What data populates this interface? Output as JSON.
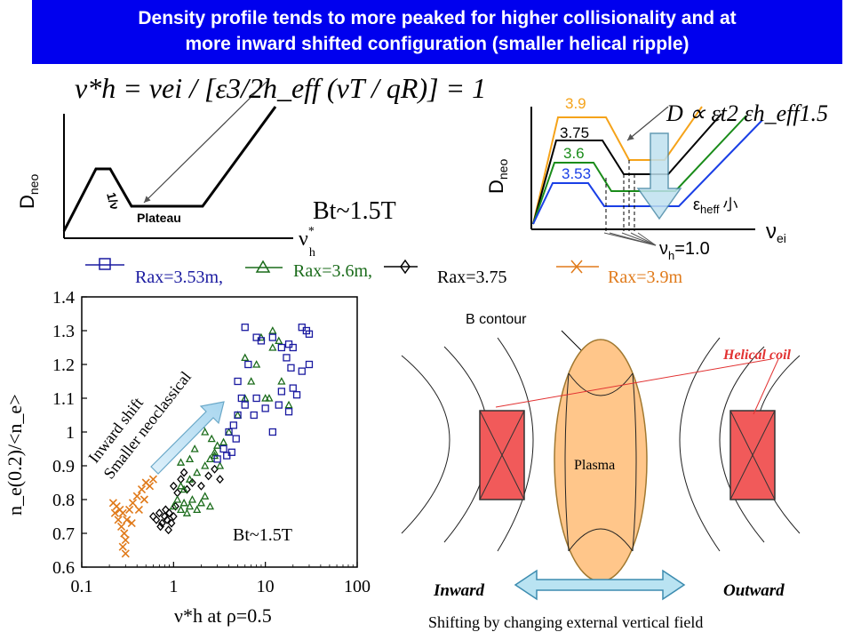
{
  "title": {
    "line1": "Density profile tends to more peaked  for higher collisionality and at",
    "line2": "more inward shifted configuration (smaller helical ripple)"
  },
  "left_schematic": {
    "ylabel": "D",
    "ylabel_sub": "neo",
    "xlabel": "ν",
    "xlabel_sup": "*",
    "xlabel_sub": "h",
    "slope_label": "1/ν",
    "plateau_label": "Plateau",
    "bt_label": "Bt~1.5T",
    "formula": "ν*h = νei / [ε3/2h_eff (νT / qR)] = 1"
  },
  "right_schematic": {
    "ylabel": "D",
    "ylabel_sub": "neo",
    "xlabel": "ν",
    "xlabel_sub": "ei",
    "formula": "D ∝ εt2 εh_eff1.5",
    "eps_label": "ε",
    "eps_sub": "heff",
    "eps_suffix": "小",
    "nu_star_label": "ν",
    "nu_star_sub": "h",
    "nu_star_value": "=1.0",
    "curves": [
      {
        "label": "3.9",
        "color": "#f5a31a"
      },
      {
        "label": "3.75",
        "color": "#000000"
      },
      {
        "label": "3.6",
        "color": "#1a8c1a"
      },
      {
        "label": "3.53",
        "color": "#1a3fe6"
      }
    ]
  },
  "legend": [
    {
      "label": "Rax=3.53m,",
      "color": "#1a1aa0",
      "marker": "square"
    },
    {
      "label": "Rax=3.6m,",
      "color": "#1a6b1a",
      "marker": "triangle"
    },
    {
      "label": "Rax=3.75",
      "color": "#000000",
      "marker": "diamond"
    },
    {
      "label": "Rax=3.9m",
      "color": "#e07a1a",
      "marker": "cross"
    }
  ],
  "scatter": {
    "ylabel": "n_e(0.2)/<n_e>",
    "xlabel": "ν*h at ρ=0.5",
    "yticks": [
      "0.6",
      "0.7",
      "0.8",
      "0.9",
      "1",
      "1.1",
      "1.2",
      "1.3",
      "1.4"
    ],
    "xticks": [
      "0.1",
      "1",
      "10",
      "100"
    ],
    "ylim": [
      0.6,
      1.4
    ],
    "xlim": [
      0.1,
      100
    ],
    "annotation_line1": "Inward shift",
    "annotation_line2": "Smaller neoclassical",
    "bt_label": "Bt~1.5T"
  },
  "chart_data": {
    "type": "scatter",
    "xscale": "log",
    "xlim": [
      0.1,
      100
    ],
    "ylim": [
      0.6,
      1.4
    ],
    "series": [
      {
        "name": "Rax=3.9m",
        "marker": "cross",
        "color": "#e07a1a",
        "points": [
          [
            0.22,
            0.79
          ],
          [
            0.24,
            0.78
          ],
          [
            0.26,
            0.77
          ],
          [
            0.28,
            0.76
          ],
          [
            0.25,
            0.74
          ],
          [
            0.27,
            0.72
          ],
          [
            0.29,
            0.7
          ],
          [
            0.3,
            0.68
          ],
          [
            0.28,
            0.66
          ],
          [
            0.3,
            0.64
          ],
          [
            0.31,
            0.74
          ],
          [
            0.33,
            0.77
          ],
          [
            0.36,
            0.79
          ],
          [
            0.4,
            0.81
          ],
          [
            0.45,
            0.83
          ],
          [
            0.5,
            0.85
          ],
          [
            0.55,
            0.84
          ],
          [
            0.42,
            0.77
          ],
          [
            0.48,
            0.8
          ],
          [
            0.6,
            0.86
          ],
          [
            0.35,
            0.73
          ],
          [
            0.23,
            0.76
          ]
        ]
      },
      {
        "name": "Rax=3.75",
        "marker": "diamond",
        "color": "#000000",
        "points": [
          [
            0.6,
            0.75
          ],
          [
            0.65,
            0.74
          ],
          [
            0.7,
            0.76
          ],
          [
            0.75,
            0.73
          ],
          [
            0.8,
            0.75
          ],
          [
            0.85,
            0.74
          ],
          [
            0.9,
            0.76
          ],
          [
            0.95,
            0.73
          ],
          [
            1.0,
            0.75
          ],
          [
            0.72,
            0.72
          ],
          [
            0.82,
            0.77
          ],
          [
            0.88,
            0.71
          ],
          [
            1.05,
            0.78
          ],
          [
            1.1,
            0.82
          ],
          [
            1.2,
            0.86
          ],
          [
            1.4,
            0.83
          ],
          [
            1.6,
            0.85
          ],
          [
            2.0,
            0.84
          ],
          [
            2.4,
            0.87
          ],
          [
            2.8,
            0.89
          ],
          [
            3.2,
            0.86
          ],
          [
            1.0,
            0.84
          ],
          [
            1.3,
            0.88
          ]
        ]
      },
      {
        "name": "Rax=3.6m",
        "marker": "triangle",
        "color": "#1a6b1a",
        "points": [
          [
            1.0,
            0.78
          ],
          [
            1.1,
            0.8
          ],
          [
            1.2,
            0.77
          ],
          [
            1.3,
            0.79
          ],
          [
            1.4,
            0.76
          ],
          [
            1.5,
            0.78
          ],
          [
            1.6,
            0.8
          ],
          [
            1.8,
            0.77
          ],
          [
            2.0,
            0.79
          ],
          [
            2.2,
            0.81
          ],
          [
            2.5,
            0.78
          ],
          [
            1.2,
            0.84
          ],
          [
            1.5,
            0.86
          ],
          [
            1.8,
            0.88
          ],
          [
            2.2,
            0.9
          ],
          [
            2.5,
            0.92
          ],
          [
            2.8,
            0.94
          ],
          [
            3.0,
            0.96
          ],
          [
            2.6,
            0.98
          ],
          [
            2.2,
            1.0
          ],
          [
            2.0,
            1.02
          ],
          [
            2.4,
            1.05
          ],
          [
            2.8,
            0.93
          ],
          [
            1.7,
            0.95
          ],
          [
            1.5,
            0.92
          ],
          [
            1.2,
            0.91
          ],
          [
            3.5,
            0.97
          ],
          [
            4.0,
            1.0
          ],
          [
            5.0,
            1.05
          ],
          [
            6.0,
            1.1
          ],
          [
            7.0,
            1.15
          ],
          [
            8.0,
            1.2
          ],
          [
            10,
            1.1
          ],
          [
            12,
            1.25
          ],
          [
            15,
            1.15
          ],
          [
            18,
            1.08
          ],
          [
            6.0,
            1.22
          ],
          [
            9.0,
            1.28
          ],
          [
            12,
            1.3
          ],
          [
            14,
            1.27
          ],
          [
            11,
            1.1
          ],
          [
            3.2,
            0.9
          ],
          [
            1.3,
            0.83
          ],
          [
            1.9,
            1.02
          ]
        ]
      },
      {
        "name": "Rax=3.53m",
        "marker": "square",
        "color": "#1a1aa0",
        "points": [
          [
            3.0,
            0.92
          ],
          [
            3.5,
            0.95
          ],
          [
            4.0,
            1.0
          ],
          [
            4.5,
            1.02
          ],
          [
            5.0,
            1.05
          ],
          [
            4.8,
            0.98
          ],
          [
            5.5,
            1.1
          ],
          [
            6.0,
            1.08
          ],
          [
            5.0,
            1.15
          ],
          [
            6.5,
            1.2
          ],
          [
            7.5,
            1.05
          ],
          [
            8.0,
            1.1
          ],
          [
            10,
            1.07
          ],
          [
            12,
            1.0
          ],
          [
            14,
            1.08
          ],
          [
            15,
            1.12
          ],
          [
            18,
            1.06
          ],
          [
            20,
            1.13
          ],
          [
            22,
            1.11
          ],
          [
            25,
            1.18
          ],
          [
            30,
            1.2
          ],
          [
            8.0,
            1.28
          ],
          [
            9.0,
            1.27
          ],
          [
            12,
            1.28
          ],
          [
            15,
            1.25
          ],
          [
            18,
            1.26
          ],
          [
            20,
            1.25
          ],
          [
            25,
            1.31
          ],
          [
            28,
            1.3
          ],
          [
            30,
            1.29
          ],
          [
            6.0,
            1.31
          ],
          [
            17,
            1.22
          ],
          [
            19,
            1.19
          ],
          [
            4.3,
            0.94
          ],
          [
            3.8,
            0.93
          ]
        ]
      }
    ]
  },
  "bottom_diagram": {
    "b_contour_label": "B contour",
    "helical_coil_label": "Helical coil",
    "plasma_label": "Plasma",
    "inward_label": "Inward",
    "outward_label": "Outward",
    "caption": "Shifting by changing external vertical field"
  }
}
